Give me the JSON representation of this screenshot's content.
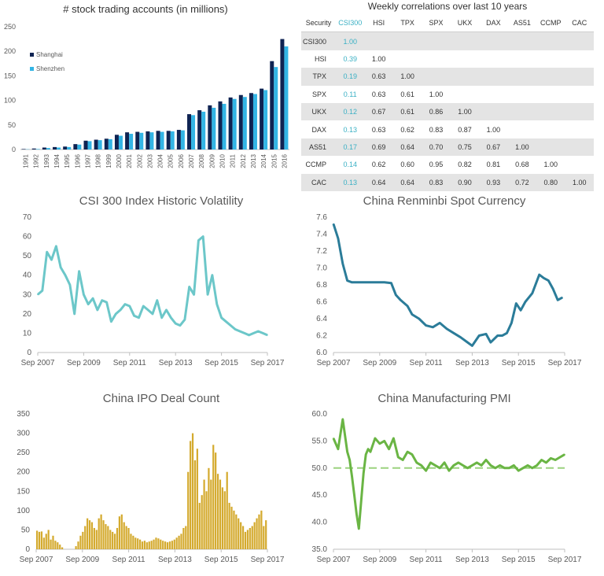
{
  "chart_data": [
    {
      "type": "bar",
      "title": "# stock trading accounts (in millions)",
      "categories": [
        "1991",
        "1992",
        "1993",
        "1994",
        "1995",
        "1996",
        "1997",
        "1998",
        "1999",
        "2000",
        "2001",
        "2002",
        "2003",
        "2004",
        "2005",
        "2006",
        "2007",
        "2008",
        "2009",
        "2010",
        "2011",
        "2012",
        "2013",
        "2014",
        "2015",
        "2016"
      ],
      "series": [
        {
          "name": "Shanghai",
          "color": "#0f2352",
          "values": [
            1,
            2,
            4,
            5,
            6,
            11,
            18,
            20,
            22,
            30,
            35,
            36,
            37,
            38,
            38,
            40,
            72,
            80,
            90,
            98,
            106,
            111,
            115,
            124,
            180,
            225
          ]
        },
        {
          "name": "Shenzhen",
          "color": "#33b5e5",
          "values": [
            0.5,
            1,
            3,
            4,
            5,
            10,
            17,
            19,
            21,
            28,
            32,
            34,
            35,
            36,
            37,
            39,
            70,
            77,
            85,
            93,
            103,
            107,
            113,
            121,
            168,
            210
          ]
        }
      ],
      "ylim": [
        0,
        250
      ],
      "yticks": [
        0,
        50,
        100,
        150,
        200,
        250
      ],
      "legend_position": "top-left"
    },
    {
      "type": "line",
      "title": "CSI 300 Index Historic Volatility",
      "color": "#6cc7c9",
      "x": [
        2007.7,
        2007.9,
        2008.1,
        2008.3,
        2008.5,
        2008.7,
        2008.9,
        2009.1,
        2009.3,
        2009.5,
        2009.7,
        2009.9,
        2010.1,
        2010.3,
        2010.5,
        2010.7,
        2010.9,
        2011.1,
        2011.3,
        2011.5,
        2011.7,
        2011.9,
        2012.1,
        2012.3,
        2012.5,
        2012.7,
        2012.9,
        2013.1,
        2013.3,
        2013.5,
        2013.7,
        2013.9,
        2014.1,
        2014.3,
        2014.5,
        2014.7,
        2014.9,
        2015.1,
        2015.3,
        2015.5,
        2015.7,
        2015.9,
        2016.1,
        2016.3,
        2016.5,
        2016.7,
        2016.9,
        2017.1,
        2017.3,
        2017.5,
        2017.7
      ],
      "y": [
        30,
        32,
        52,
        48,
        55,
        44,
        40,
        35,
        20,
        42,
        30,
        25,
        28,
        22,
        27,
        26,
        16,
        20,
        22,
        25,
        24,
        19,
        18,
        24,
        22,
        20,
        27,
        18,
        22,
        18,
        15,
        14,
        17,
        34,
        30,
        58,
        60,
        30,
        40,
        25,
        18,
        16,
        14,
        12,
        11,
        10,
        9,
        10,
        11,
        10,
        9
      ],
      "xticks": [
        "Sep 2007",
        "Sep 2009",
        "Sep 2011",
        "Sep 2013",
        "Sep 2015",
        "Sep 2017"
      ],
      "xtick_values": [
        2007.7,
        2009.7,
        2011.7,
        2013.7,
        2015.7,
        2017.7
      ],
      "ylim": [
        0,
        70
      ],
      "yticks": [
        0,
        10,
        20,
        30,
        40,
        50,
        60,
        70
      ]
    },
    {
      "type": "line",
      "title": "China Renminbi Spot Currency",
      "color": "#2b7c99",
      "x": [
        2007.7,
        2007.9,
        2008.1,
        2008.3,
        2008.5,
        2008.7,
        2009.0,
        2009.3,
        2009.6,
        2009.9,
        2010.2,
        2010.4,
        2010.6,
        2010.9,
        2011.1,
        2011.4,
        2011.7,
        2012.0,
        2012.3,
        2012.6,
        2012.9,
        2013.2,
        2013.5,
        2013.7,
        2014.0,
        2014.3,
        2014.5,
        2014.8,
        2015.0,
        2015.2,
        2015.4,
        2015.6,
        2015.8,
        2016.0,
        2016.3,
        2016.6,
        2016.8,
        2017.0,
        2017.2,
        2017.4,
        2017.6
      ],
      "y": [
        7.52,
        7.35,
        7.05,
        6.85,
        6.83,
        6.83,
        6.83,
        6.83,
        6.83,
        6.83,
        6.82,
        6.68,
        6.62,
        6.55,
        6.45,
        6.4,
        6.32,
        6.3,
        6.35,
        6.28,
        6.23,
        6.18,
        6.12,
        6.08,
        6.2,
        6.22,
        6.12,
        6.2,
        6.2,
        6.23,
        6.35,
        6.58,
        6.5,
        6.6,
        6.7,
        6.92,
        6.88,
        6.85,
        6.75,
        6.62,
        6.65
      ],
      "xticks": [
        "Sep 2007",
        "Sep 2009",
        "Sep 2011",
        "Sep 2013",
        "Sep 2015",
        "Sep 2017"
      ],
      "xtick_values": [
        2007.7,
        2009.7,
        2011.7,
        2013.7,
        2015.7,
        2017.7
      ],
      "ylim": [
        6.0,
        7.6
      ],
      "yticks": [
        "6.0",
        "6.2",
        "6.4",
        "6.6",
        "6.8",
        "7.0",
        "7.2",
        "7.4",
        "7.6"
      ]
    },
    {
      "type": "bar",
      "title": "China IPO Deal Count",
      "color": "#d4aa2e",
      "x_start": 2007.7,
      "x_end": 2017.7,
      "values": [
        48,
        45,
        46,
        30,
        40,
        50,
        25,
        35,
        22,
        18,
        12,
        5,
        0,
        0,
        0,
        0,
        0,
        8,
        20,
        35,
        45,
        60,
        80,
        75,
        70,
        55,
        50,
        80,
        90,
        75,
        65,
        60,
        50,
        45,
        40,
        55,
        85,
        90,
        70,
        60,
        55,
        40,
        35,
        30,
        28,
        25,
        20,
        22,
        18,
        20,
        22,
        25,
        30,
        28,
        25,
        22,
        20,
        18,
        20,
        22,
        25,
        30,
        35,
        40,
        55,
        60,
        200,
        280,
        300,
        230,
        260,
        120,
        140,
        180,
        150,
        210,
        180,
        270,
        250,
        195,
        180,
        160,
        150,
        200,
        120,
        110,
        100,
        90,
        80,
        70,
        60,
        45,
        50,
        55,
        60,
        70,
        80,
        90,
        100,
        60,
        75
      ],
      "xticks": [
        "Sep 2007",
        "Sep 2009",
        "Sep 2011",
        "Sep 2013",
        "Sep 2015",
        "Sep 2017"
      ],
      "xtick_values": [
        2007.7,
        2009.7,
        2011.7,
        2013.7,
        2015.7,
        2017.7
      ],
      "ylim": [
        0,
        350
      ],
      "yticks": [
        0,
        50,
        100,
        150,
        200,
        250,
        300,
        350
      ]
    },
    {
      "type": "line",
      "title": "China Manufacturing PMI",
      "color": "#6ab544",
      "reference_line": 50.0,
      "reference_color": "#9bd27f",
      "x": [
        2007.7,
        2007.9,
        2008.1,
        2008.3,
        2008.4,
        2008.5,
        2008.6,
        2008.7,
        2008.8,
        2008.9,
        2009.0,
        2009.1,
        2009.2,
        2009.3,
        2009.5,
        2009.7,
        2009.9,
        2010.1,
        2010.3,
        2010.5,
        2010.7,
        2010.9,
        2011.1,
        2011.3,
        2011.5,
        2011.7,
        2011.9,
        2012.1,
        2012.3,
        2012.5,
        2012.7,
        2012.9,
        2013.1,
        2013.3,
        2013.5,
        2013.7,
        2013.9,
        2014.1,
        2014.3,
        2014.5,
        2014.7,
        2014.9,
        2015.1,
        2015.3,
        2015.5,
        2015.7,
        2015.9,
        2016.1,
        2016.3,
        2016.5,
        2016.7,
        2016.9,
        2017.1,
        2017.3,
        2017.5,
        2017.7
      ],
      "y": [
        55.5,
        53.5,
        59.0,
        53.0,
        51.5,
        48.5,
        45.0,
        41.5,
        38.8,
        44.0,
        49.0,
        52.5,
        53.5,
        53.0,
        55.5,
        54.5,
        55.0,
        53.5,
        55.5,
        52.0,
        51.5,
        53.0,
        52.5,
        51.0,
        50.5,
        49.5,
        51.0,
        50.5,
        50.0,
        51.0,
        49.5,
        50.5,
        51.0,
        50.5,
        50.0,
        50.5,
        51.0,
        50.5,
        51.5,
        50.5,
        50.0,
        50.5,
        50.0,
        50.0,
        50.5,
        49.5,
        50.0,
        50.5,
        50.0,
        50.5,
        51.5,
        51.0,
        51.8,
        51.5,
        52.0,
        52.5
      ],
      "xticks": [
        "Sep 2007",
        "Sep 2009",
        "Sep 2011",
        "Sep 2013",
        "Sep 2015",
        "Sep 2017"
      ],
      "xtick_values": [
        2007.7,
        2009.7,
        2011.7,
        2013.7,
        2015.7,
        2017.7
      ],
      "ylim": [
        35.0,
        60.0
      ],
      "yticks": [
        "35.0",
        "40.0",
        "45.0",
        "50.0",
        "55.0",
        "60.0"
      ]
    }
  ],
  "table": {
    "title": "Weekly correlations over last 10 years",
    "headers": [
      "Security",
      "CSI300",
      "HSI",
      "TPX",
      "SPX",
      "UKX",
      "DAX",
      "AS51",
      "CCMP",
      "CAC"
    ],
    "rows": [
      {
        "label": "CSI300",
        "cells": [
          "1.00",
          "",
          "",
          "",
          "",
          "",
          "",
          "",
          ""
        ]
      },
      {
        "label": "HSI",
        "cells": [
          "0.39",
          "1.00",
          "",
          "",
          "",
          "",
          "",
          "",
          ""
        ]
      },
      {
        "label": "TPX",
        "cells": [
          "0.19",
          "0.63",
          "1.00",
          "",
          "",
          "",
          "",
          "",
          ""
        ]
      },
      {
        "label": "SPX",
        "cells": [
          "0.11",
          "0.63",
          "0.61",
          "1.00",
          "",
          "",
          "",
          "",
          ""
        ]
      },
      {
        "label": "UKX",
        "cells": [
          "0.12",
          "0.67",
          "0.61",
          "0.86",
          "1.00",
          "",
          "",
          "",
          ""
        ]
      },
      {
        "label": "DAX",
        "cells": [
          "0.13",
          "0.63",
          "0.62",
          "0.83",
          "0.87",
          "1.00",
          "",
          "",
          ""
        ]
      },
      {
        "label": "AS51",
        "cells": [
          "0.17",
          "0.69",
          "0.64",
          "0.70",
          "0.75",
          "0.67",
          "1.00",
          "",
          ""
        ]
      },
      {
        "label": "CCMP",
        "cells": [
          "0.14",
          "0.62",
          "0.60",
          "0.95",
          "0.82",
          "0.81",
          "0.68",
          "1.00",
          ""
        ]
      },
      {
        "label": "CAC",
        "cells": [
          "0.13",
          "0.64",
          "0.64",
          "0.83",
          "0.90",
          "0.93",
          "0.72",
          "0.80",
          "1.00"
        ]
      }
    ]
  }
}
